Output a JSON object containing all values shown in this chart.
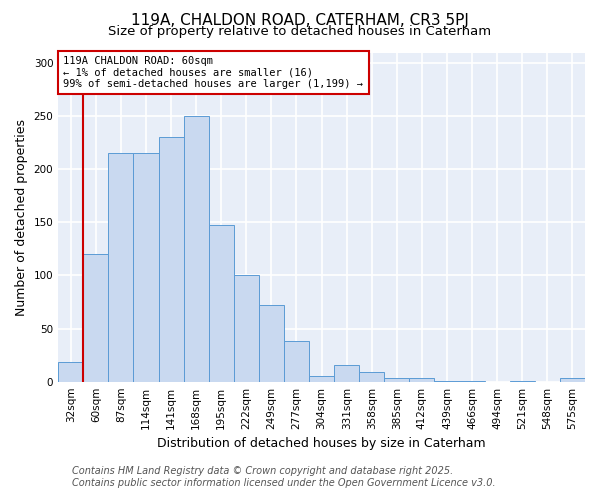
{
  "title1": "119A, CHALDON ROAD, CATERHAM, CR3 5PJ",
  "title2": "Size of property relative to detached houses in Caterham",
  "xlabel": "Distribution of detached houses by size in Caterham",
  "ylabel": "Number of detached properties",
  "categories": [
    "32sqm",
    "60sqm",
    "87sqm",
    "114sqm",
    "141sqm",
    "168sqm",
    "195sqm",
    "222sqm",
    "249sqm",
    "277sqm",
    "304sqm",
    "331sqm",
    "358sqm",
    "385sqm",
    "412sqm",
    "439sqm",
    "466sqm",
    "494sqm",
    "521sqm",
    "548sqm",
    "575sqm"
  ],
  "values": [
    19,
    120,
    215,
    215,
    230,
    250,
    148,
    100,
    72,
    38,
    5,
    16,
    9,
    3,
    3,
    1,
    1,
    0,
    1,
    0,
    3
  ],
  "bar_color": "#c9d9f0",
  "bar_edge_color": "#5b9bd5",
  "highlight_index": 1,
  "annotation_line1": "119A CHALDON ROAD: 60sqm",
  "annotation_line2": "← 1% of detached houses are smaller (16)",
  "annotation_line3": "99% of semi-detached houses are larger (1,199) →",
  "annotation_box_color": "#ffffff",
  "annotation_box_edge_color": "#cc0000",
  "red_line_color": "#cc0000",
  "ylim": [
    0,
    310
  ],
  "yticks": [
    0,
    50,
    100,
    150,
    200,
    250,
    300
  ],
  "footer_line1": "Contains HM Land Registry data © Crown copyright and database right 2025.",
  "footer_line2": "Contains public sector information licensed under the Open Government Licence v3.0.",
  "bg_color": "#ffffff",
  "plot_bg_color": "#e8eef8",
  "grid_color": "#ffffff",
  "title_fontsize": 11,
  "subtitle_fontsize": 9.5,
  "tick_fontsize": 7.5,
  "label_fontsize": 9,
  "footer_fontsize": 7
}
